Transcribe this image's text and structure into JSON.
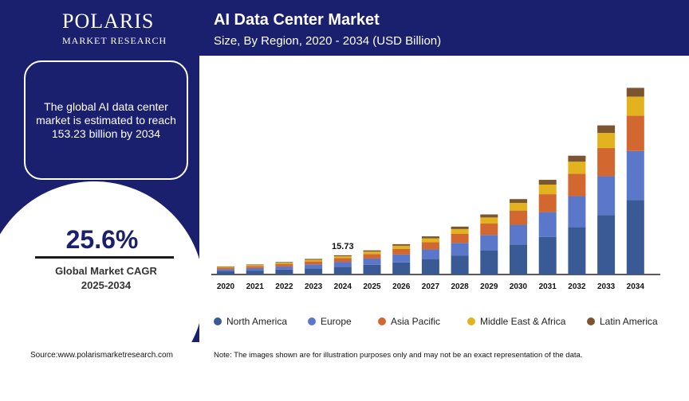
{
  "brand": {
    "name": "POLARIS",
    "tagline": "MARKET RESEARCH"
  },
  "header": {
    "title": "AI Data Center Market",
    "subtitle": "Size, By Region, 2020 - 2034 (USD Billion)"
  },
  "info": {
    "text": "The global AI data center market is estimated to reach 153.23 billion by 2034"
  },
  "cagr": {
    "value": "25.6%",
    "label_line1": "Global Market CAGR",
    "label_line2": "2025-2034"
  },
  "footer": {
    "source": "Source:www.polarismarketresearch.com",
    "note": "Note: The images shown are for illustration purposes only and may not be an exact representation of the data."
  },
  "colors": {
    "navy": "#1a1f6e"
  },
  "chart_data": {
    "type": "bar",
    "stacked": true,
    "categories": [
      "2020",
      "2021",
      "2022",
      "2023",
      "2024",
      "2025",
      "2026",
      "2027",
      "2028",
      "2029",
      "2030",
      "2031",
      "2032",
      "2033",
      "2034"
    ],
    "annotation": {
      "category": "2024",
      "text": "15.73"
    },
    "series": [
      {
        "name": "North America",
        "color": "#3a5a95",
        "values": [
          2.6,
          3.2,
          4.0,
          5.0,
          6.3,
          7.9,
          9.9,
          12.4,
          15.6,
          19.6,
          24.6,
          30.9,
          38.8,
          48.7,
          61.2
        ]
      },
      {
        "name": "Europe",
        "color": "#5b77c9",
        "values": [
          1.7,
          2.1,
          2.6,
          3.3,
          4.1,
          5.2,
          6.5,
          8.2,
          10.3,
          12.9,
          16.2,
          20.3,
          25.5,
          32.0,
          40.2
        ]
      },
      {
        "name": "Asia Pacific",
        "color": "#d2682f",
        "values": [
          1.2,
          1.5,
          1.9,
          2.4,
          3.0,
          3.7,
          4.7,
          5.9,
          7.4,
          9.3,
          11.7,
          14.7,
          18.4,
          23.1,
          29.0
        ]
      },
      {
        "name": "Middle East & Africa",
        "color": "#e3b21f",
        "values": [
          0.7,
          0.9,
          1.1,
          1.4,
          1.6,
          2.0,
          2.5,
          3.2,
          4.0,
          5.0,
          6.3,
          7.9,
          9.9,
          12.4,
          15.6
        ]
      },
      {
        "name": "Latin America",
        "color": "#7a5530",
        "values": [
          0.4,
          0.5,
          0.6,
          0.7,
          0.8,
          1.0,
          1.3,
          1.6,
          2.0,
          2.5,
          3.1,
          3.9,
          4.9,
          6.2,
          7.2
        ]
      }
    ],
    "ylim": [
      0,
      160
    ],
    "grid": false,
    "legend": "bottom"
  }
}
